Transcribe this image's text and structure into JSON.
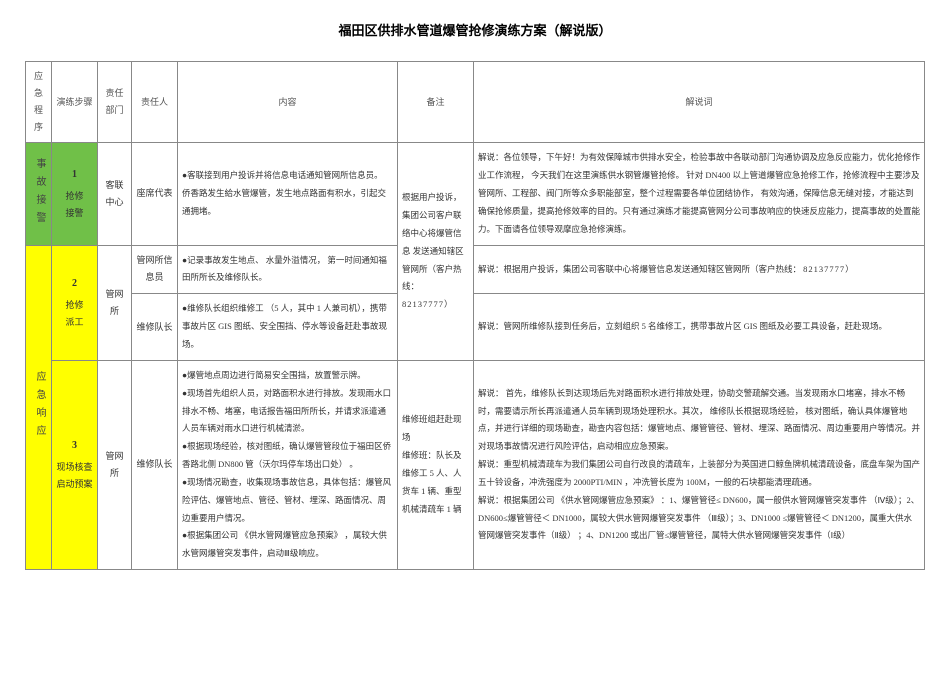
{
  "title": "福田区供排水管道爆管抢修演练方案（解说版）",
  "columns": {
    "c1": "应急程序",
    "c2": "演练步骤",
    "c3": "责任部门",
    "c4": "责任人",
    "c5": "内容",
    "c6": "备注",
    "c7": "解说词"
  },
  "col_widths": {
    "c1": 26,
    "c2": 46,
    "c3": 34,
    "c4": 46,
    "c5": 220,
    "c6": 76,
    "c7": 300
  },
  "colors": {
    "green": "#70c048",
    "yellow": "#ffff00",
    "border": "#888888",
    "text": "#333333"
  },
  "phase1": {
    "label": "事故接警",
    "step_num": "1",
    "step_name": "抢修\n接警",
    "dept": "客联中心",
    "person": "座席代表",
    "content": "●客联接到用户投诉并将信息电话通知管网所信息员。       侨香路发生給水管爆管，发生地点路面有积水，引起交通拥堵。",
    "remark_top": "根据用户投诉，集团公司客户联络中心将爆管信息",
    "narration": "解说：各位领导，下午好！为有效保障城市供排水安全，检验事故中各联动部门沟通协调及应急反应能力，优化抢修作业工作流程，   今天我们在这里演练供水钢管爆管抢修。       针对 DN400 以上管道爆管应急抢修工作，抢修流程中主要涉及管网所、工程部、阀门所等众多职能部室，整个过程需要各单位团结协作，           有效沟通，保障信息无缝对接，才能达到确保抢修质量，提高抢修效率的目的。只有通过演练才能提高管网分公司事故响应的快速反应能力，提高事故的处置能力。下面请各位领导观摩应急抢修演练。"
  },
  "phase2": {
    "label": "应急响应",
    "step2": {
      "num": "2",
      "name": "抢修\n派工",
      "dept": "管网所",
      "row_a": {
        "person": "管网所信息员",
        "content": "●记录事故发生地点、   水量外溢情况，   第一时间通知福田所所长及维修队长。",
        "narration": "解说：根据用户投诉，集团公司客联中心将爆管信息发送通知辖区管网所（客户热线：           82137777）"
      },
      "row_b": {
        "person": "维修队长",
        "content": "●维修队长组织维修工  （5 人，其中 1 人兼司机），携带事故片区     GIS 图纸、安全围挡、停水等设备赶赴事故现场。",
        "narration": "解说：管网所维修队接到任务后，立刻组织      5 名维修工，携带事故片区     GIS 图纸及必要工具设备，赶赴现场。"
      }
    },
    "remark_span": "发送通知辖区管网所（客户热线：",
    "remark_phone": "82137777）",
    "step3": {
      "num": "3",
      "name": "现场核查\n启动预案",
      "dept": "管网所",
      "person": "维修队长",
      "content": "●爆管地点周边进行简易安全围挡，放置警示牌。\n●现场首先组织人员，对路面积水进行排放。发现雨水口排水不畅、堵塞，电话报告福田所所长，并请求派遣通人员车辆对雨水口进行机械清淤。\n●根据现场经验，核对图纸，确认爆管管段位于福田区侨香路北侧 DN800 管（沃尔玛停车场出口处）  。\n●现场情况勘查，收集现场事故信息，具体包括：爆管风险评估、爆管地点、管径、管材、埋深、路面情况、周边重要用户情况。\n●根据集团公司  《供水管网爆管应急预案》  ，属较大供水管网爆管突发事件，启动Ⅲ级响应。",
      "remark": "维修班组赶赴现场\n维修班：队长及维修工 5 人、人货车 1 辆、重型机械清疏车 1 辆",
      "narration": "解说：  首先，维修队长到达现场后先对路面积水进行排放处理，协助交警疏解交通。当发现雨水口堵塞，排水不畅时，需要请示所长再派遣通人员车辆到现场处理积水。其次，          维修队长根据现场经验，   核对图纸，确认具体爆管地点，并进行详细的现场勘查，勘查内容包括：爆管地点、爆管管径、管材、埋深、路面情况、周边重要用户等情况。并对现场事故情况进行风险评估，启动相应应急预案。\n解说：重型机械清疏车为我们集团公司自行改良的清疏车，上装部分为英国进口鲸鱼牌机械清疏设备，底盘车架为国产五十铃设备，冲洗强度为        2000PTI/MIN  ，冲洗管长度为   100M，一般的石块都能清理疏通。\n解说：根据集团公司  《供水管网爆管应急预案》  ：1、爆管管径≤ DN600，属一般供水管网爆管突发事件   （Ⅳ级）；2、DN600≤爆管管径＜ DN1000，属较大供水管网爆管突发事件   （Ⅲ级）；3、DN1000 ≤爆管管径＜ DN1200，属重大供水管网爆管突发事件（Ⅱ级）    ；4、DN1200 或出厂管≤爆管管径，属特大供水管网爆管突发事件（Ⅰ级）"
    }
  }
}
